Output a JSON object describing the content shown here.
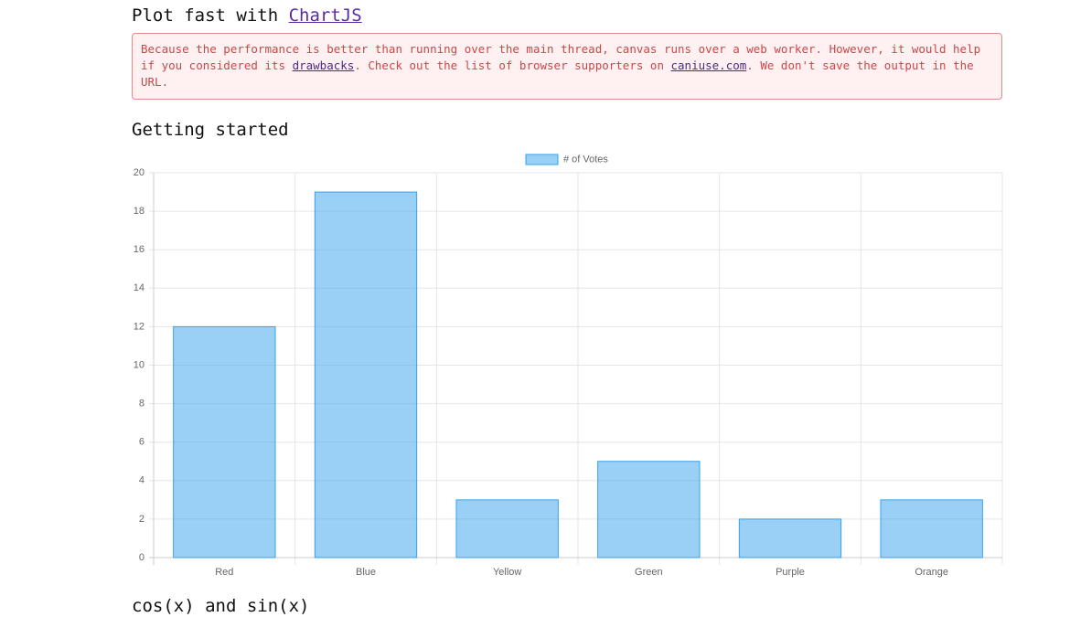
{
  "header": {
    "title": "Plot fast with",
    "link": "ChartJS"
  },
  "warning": {
    "text1": "Because the performance is better than running over the main thread, canvas runs over a web worker. However, it would help if you considered its",
    "link1": "drawbacks",
    "text2": ". Check out the list of browser supporters on",
    "link2": "caniuse.com",
    "text3": ". We don't save the output in the URL."
  },
  "sections": [
    "Getting started",
    "cos(x) and sin(x)"
  ],
  "chart_data": {
    "type": "bar",
    "categories": [
      "Red",
      "Blue",
      "Yellow",
      "Green",
      "Purple",
      "Orange"
    ],
    "series": [
      {
        "name": "# of Votes",
        "color": "#36a2eb",
        "values": [
          12,
          19,
          3,
          5,
          2,
          3
        ]
      }
    ],
    "ylim": [
      0,
      20
    ],
    "yticks": [
      0,
      2,
      4,
      6,
      8,
      10,
      12,
      14,
      16,
      18,
      20
    ],
    "grid": true
  }
}
